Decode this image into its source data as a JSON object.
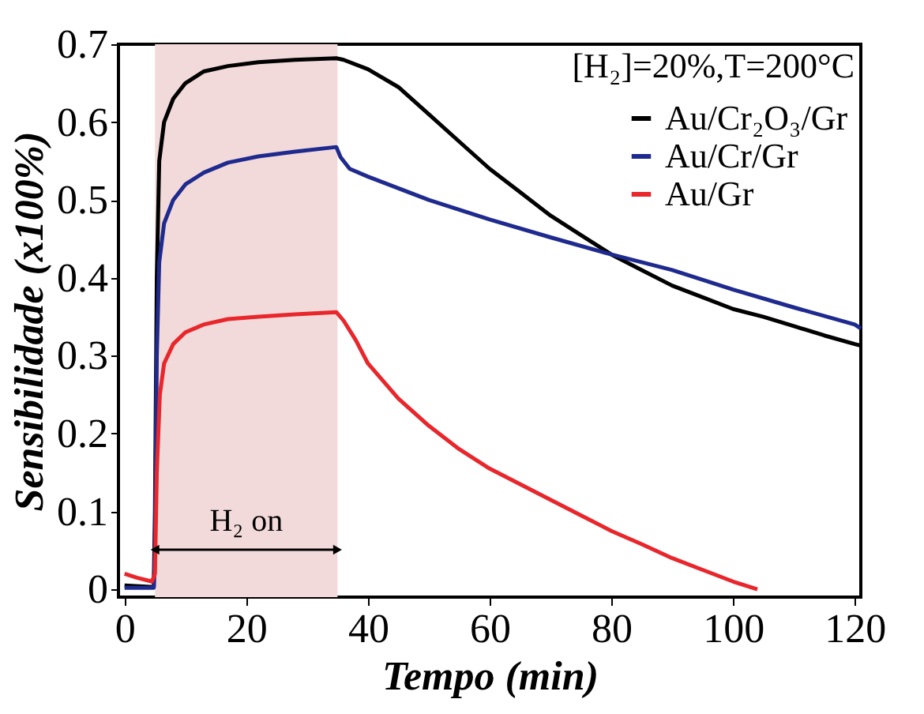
{
  "chart_data": {
    "type": "line",
    "xlabel": "Tempo (min)",
    "ylabel": "Sensibilidade (x100%)",
    "xlim": [
      -1,
      121
    ],
    "ylim": [
      -0.01,
      0.7
    ],
    "xticks": [
      0,
      20,
      40,
      60,
      80,
      100,
      120
    ],
    "yticks": [
      0,
      0.1,
      0.2,
      0.3,
      0.4,
      0.5,
      0.6,
      0.7
    ],
    "grid": false,
    "legend": "top right",
    "line_style": "solid",
    "bands": [
      {
        "axis": "x",
        "from": 5,
        "to": 35,
        "color": "#f3dada",
        "label": "H₂ on"
      }
    ],
    "annotations": [
      "[H₂]=20%,T=200°C"
    ],
    "series": [
      {
        "name": "Au/Cr₂O₃/Gr",
        "color": "#000000",
        "x": [
          0,
          4.8,
          5,
          5.3,
          5.7,
          6.5,
          8,
          10,
          13,
          17,
          22,
          28,
          34.8,
          36,
          40,
          45,
          50,
          55,
          60,
          65,
          70,
          75,
          80,
          85,
          90,
          95,
          100,
          105,
          110,
          115,
          120,
          121
        ],
        "values": [
          0.005,
          0.003,
          0.1,
          0.4,
          0.55,
          0.6,
          0.63,
          0.65,
          0.665,
          0.672,
          0.677,
          0.68,
          0.682,
          0.68,
          0.668,
          0.645,
          0.61,
          0.575,
          0.54,
          0.51,
          0.48,
          0.455,
          0.43,
          0.41,
          0.39,
          0.375,
          0.36,
          0.35,
          0.338,
          0.326,
          0.315,
          0.313
        ]
      },
      {
        "name": "Au/Cr/Gr",
        "color": "#1f2a8f",
        "x": [
          0,
          4.8,
          5,
          5.3,
          5.7,
          6.5,
          8,
          10,
          13,
          17,
          22,
          28,
          34.8,
          35.5,
          37,
          40,
          45,
          50,
          60,
          70,
          80,
          90,
          100,
          110,
          120,
          121
        ],
        "values": [
          0.002,
          0.002,
          0.05,
          0.3,
          0.42,
          0.47,
          0.5,
          0.52,
          0.535,
          0.548,
          0.556,
          0.562,
          0.568,
          0.555,
          0.54,
          0.53,
          0.515,
          0.5,
          0.475,
          0.452,
          0.43,
          0.41,
          0.385,
          0.362,
          0.34,
          0.335
        ]
      },
      {
        "name": "Au/Gr",
        "color": "#e8262b",
        "x": [
          0,
          2,
          4.5,
          5,
          5.3,
          5.8,
          6.5,
          8,
          10,
          13,
          17,
          22,
          28,
          34.8,
          36,
          38,
          40,
          45,
          50,
          55,
          60,
          65,
          70,
          75,
          80,
          85,
          90,
          95,
          100,
          104
        ],
        "values": [
          0.02,
          0.015,
          0.01,
          0.02,
          0.15,
          0.25,
          0.29,
          0.315,
          0.33,
          0.34,
          0.347,
          0.35,
          0.353,
          0.356,
          0.345,
          0.32,
          0.29,
          0.245,
          0.21,
          0.18,
          0.155,
          0.135,
          0.115,
          0.095,
          0.075,
          0.058,
          0.04,
          0.025,
          0.01,
          0.0
        ]
      }
    ]
  }
}
